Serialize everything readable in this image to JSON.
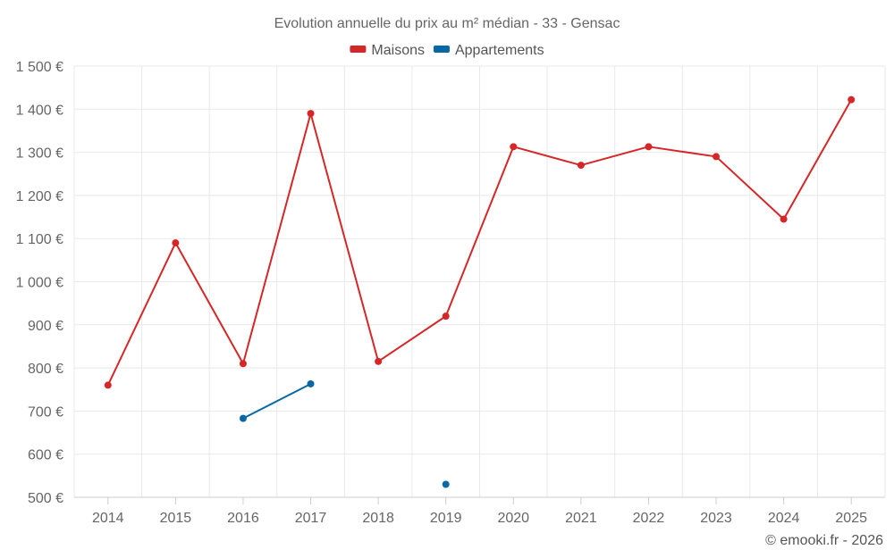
{
  "chart_data": {
    "type": "line",
    "title": "Evolution annuelle du prix au m² médian - 33 - Gensac",
    "categories": [
      "2014",
      "2015",
      "2016",
      "2017",
      "2018",
      "2019",
      "2020",
      "2021",
      "2022",
      "2023",
      "2024",
      "2025"
    ],
    "series": [
      {
        "name": "Maisons",
        "color": "#d62728",
        "values": [
          760,
          1090,
          810,
          1390,
          815,
          920,
          1313,
          1270,
          1313,
          1290,
          1145,
          1422
        ]
      },
      {
        "name": "Appartements",
        "color": "#0868a6",
        "values": [
          null,
          null,
          683,
          763,
          null,
          530,
          null,
          null,
          null,
          null,
          null,
          null
        ]
      }
    ],
    "ylim": [
      500,
      1500
    ],
    "yticks": [
      500,
      600,
      700,
      800,
      900,
      1000,
      1100,
      1200,
      1300,
      1400,
      1500
    ],
    "ytick_labels": [
      "500 €",
      "600 €",
      "700 €",
      "800 €",
      "900 €",
      "1 000 €",
      "1 100 €",
      "1 200 €",
      "1 300 €",
      "1 400 €",
      "1 500 €"
    ],
    "legend_position": "top-center",
    "grid": true
  },
  "credit": "© emooki.fr - 2026"
}
